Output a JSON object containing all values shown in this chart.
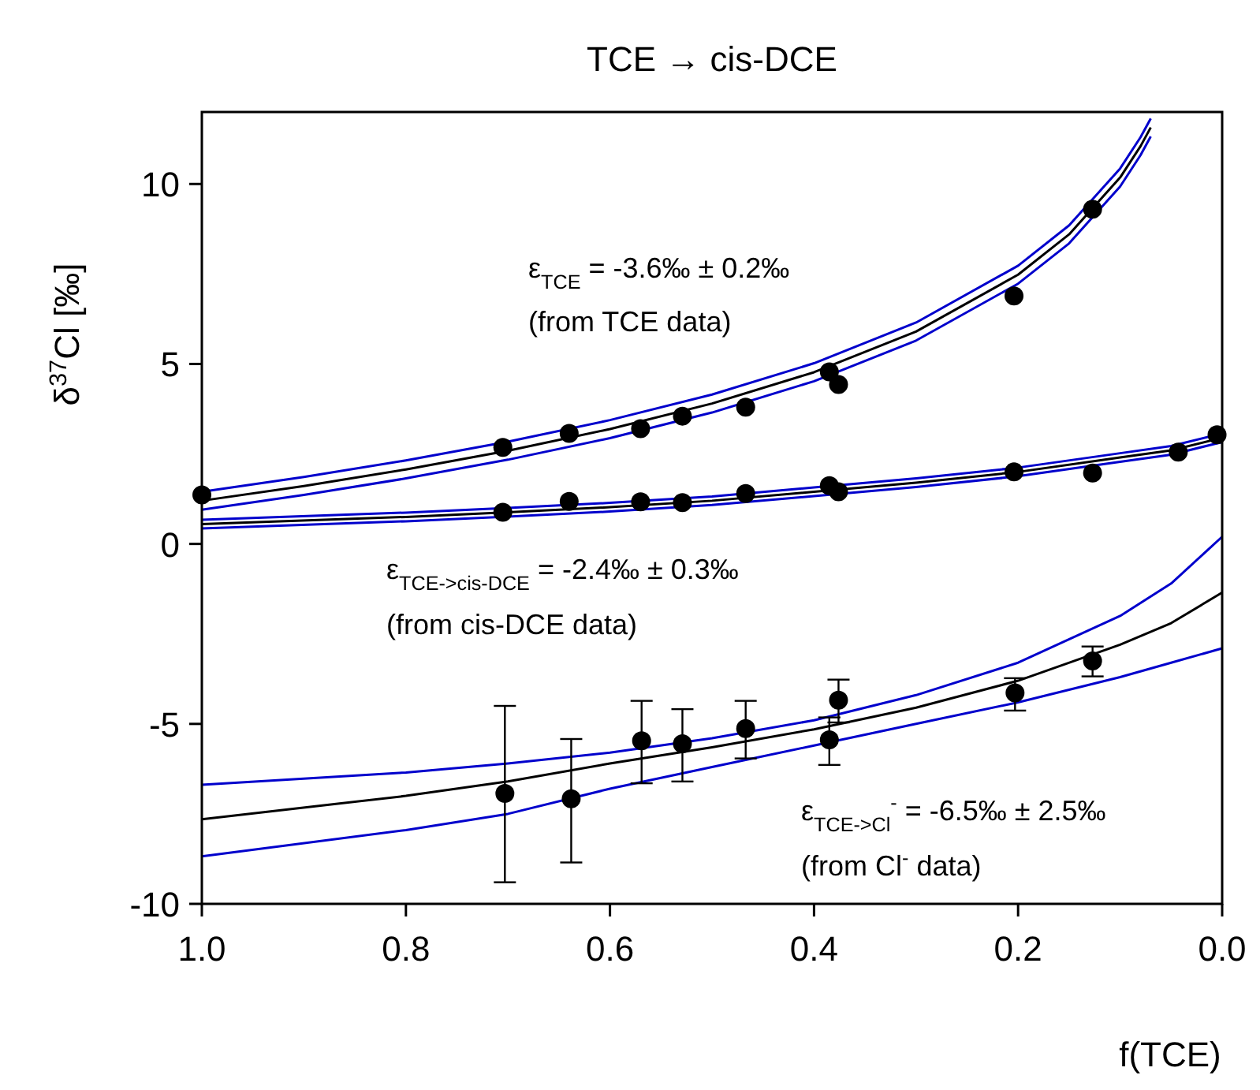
{
  "chart_data": {
    "type": "scatter",
    "title": "TCE → cis-DCE",
    "xlabel": "f(TCE)",
    "ylabel": "δ$^{37}$Cl [‰]",
    "xlim": [
      1,
      0
    ],
    "xticks": [
      {
        "value": 1,
        "label": "1.0"
      },
      {
        "value": 0.8,
        "label": "0.8"
      },
      {
        "value": 0.6,
        "label": "0.6"
      },
      {
        "value": 0.4,
        "label": "0.4"
      },
      {
        "value": 0.2,
        "label": "0.2"
      },
      {
        "value": 0,
        "label": "0.0"
      }
    ],
    "ylim": [
      -10,
      12
    ],
    "yticks": [
      -10,
      -5,
      0,
      5,
      10
    ],
    "grid": false,
    "line_style": "solid",
    "series": [
      {
        "type": "line",
        "color": "#0000cc",
        "x": [
          1,
          0.9,
          0.8,
          0.7,
          0.6,
          0.5,
          0.4,
          0.3,
          0.2,
          0.15,
          0.1,
          0.08,
          0.07
        ],
        "values": [
          1.45,
          1.86,
          2.32,
          2.84,
          3.44,
          4.15,
          5.02,
          6.15,
          7.73,
          8.85,
          10.43,
          11.3,
          11.82
        ]
      },
      {
        "type": "line",
        "color": "#0000cc",
        "x": [
          1,
          0.9,
          0.8,
          0.7,
          0.6,
          0.5,
          0.4,
          0.3,
          0.2,
          0.15,
          0.1,
          0.08,
          0.07
        ],
        "values": [
          0.95,
          1.36,
          1.82,
          2.34,
          2.94,
          3.65,
          4.52,
          5.65,
          7.23,
          8.35,
          9.93,
          10.8,
          11.32
        ]
      },
      {
        "type": "line",
        "color": "#000000",
        "x": [
          1,
          0.9,
          0.8,
          0.7,
          0.6,
          0.5,
          0.4,
          0.3,
          0.2,
          0.15,
          0.1,
          0.08,
          0.07
        ],
        "values": [
          1.2,
          1.61,
          2.07,
          2.59,
          3.19,
          3.9,
          4.77,
          5.9,
          7.48,
          8.6,
          10.18,
          11.05,
          11.57
        ]
      },
      {
        "type": "line",
        "color": "#0000cc",
        "x": [
          1,
          0.8,
          0.7,
          0.6,
          0.5,
          0.4,
          0.3,
          0.2,
          0.1,
          0.05,
          0
        ],
        "values": [
          0.67,
          0.87,
          1.0,
          1.14,
          1.32,
          1.57,
          1.82,
          2.12,
          2.52,
          2.72,
          3.07
        ]
      },
      {
        "type": "line",
        "color": "#0000cc",
        "x": [
          1,
          0.8,
          0.7,
          0.6,
          0.5,
          0.4,
          0.3,
          0.2,
          0.1,
          0.05,
          0
        ],
        "values": [
          0.43,
          0.63,
          0.76,
          0.9,
          1.08,
          1.33,
          1.58,
          1.88,
          2.28,
          2.48,
          2.83
        ]
      },
      {
        "type": "line",
        "color": "#000000",
        "x": [
          1,
          0.8,
          0.7,
          0.6,
          0.5,
          0.4,
          0.3,
          0.2,
          0.1,
          0.05,
          0
        ],
        "values": [
          0.55,
          0.75,
          0.88,
          1.02,
          1.2,
          1.45,
          1.7,
          2.0,
          2.4,
          2.6,
          2.95
        ]
      },
      {
        "type": "line",
        "color": "#0000cc",
        "x": [
          1,
          0.8,
          0.7,
          0.6,
          0.5,
          0.4,
          0.3,
          0.2,
          0.1,
          0.05,
          0
        ],
        "values": [
          -6.69,
          -6.35,
          -6.1,
          -5.8,
          -5.4,
          -4.9,
          -4.2,
          -3.3,
          -2.0,
          -1.1,
          0.2
        ]
      },
      {
        "type": "line",
        "color": "#0000cc",
        "x": [
          1,
          0.8,
          0.7,
          0.6,
          0.5,
          0.4,
          0.3,
          0.2,
          0.1,
          0.05,
          0
        ],
        "values": [
          -8.68,
          -7.95,
          -7.5,
          -6.8,
          -6.2,
          -5.6,
          -5.0,
          -4.4,
          -3.7,
          -3.3,
          -2.9
        ]
      },
      {
        "type": "line",
        "color": "#000000",
        "x": [
          1,
          0.8,
          0.7,
          0.6,
          0.5,
          0.4,
          0.3,
          0.2,
          0.1,
          0.05,
          0
        ],
        "values": [
          -7.65,
          -7.0,
          -6.6,
          -6.1,
          -5.65,
          -5.15,
          -4.55,
          -3.8,
          -2.8,
          -2.2,
          -1.35
        ]
      },
      {
        "color": "#000000",
        "marker": "circle",
        "x": [
          1,
          0.705,
          0.64,
          0.57,
          0.529,
          0.467,
          0.385,
          0.376,
          0.204,
          0.127
        ],
        "values": [
          1.36,
          2.68,
          3.07,
          3.2,
          3.55,
          3.8,
          4.78,
          4.43,
          6.89,
          9.3
        ]
      },
      {
        "color": "#000000",
        "marker": "circle",
        "x": [
          0.705,
          0.64,
          0.57,
          0.529,
          0.467,
          0.385,
          0.376,
          0.204,
          0.127,
          0.043,
          0.005
        ],
        "values": [
          0.88,
          1.18,
          1.17,
          1.15,
          1.4,
          1.62,
          1.45,
          2.0,
          1.97,
          2.55,
          3.03
        ]
      },
      {
        "color": "#000000",
        "marker": "circle",
        "x": [
          0.703,
          0.638,
          0.569,
          0.529,
          0.467,
          0.385,
          0.376,
          0.203,
          0.127
        ],
        "values": [
          -6.93,
          -7.08,
          -5.47,
          -5.55,
          -5.13,
          -5.44,
          -4.34,
          -4.14,
          -3.25
        ],
        "errors": [
          [
            -9.4,
            -4.5
          ],
          [
            -8.85,
            -5.42
          ],
          [
            -6.65,
            -4.36
          ],
          [
            -6.6,
            -4.59
          ],
          [
            -5.96,
            -4.36
          ],
          [
            -6.14,
            -4.82
          ],
          [
            -4.96,
            -3.77
          ],
          [
            -4.63,
            -3.73
          ],
          [
            -3.68,
            -2.85
          ]
        ]
      }
    ],
    "annotations": [
      "ε$_{TCE}$ = -3.6‰ ± 0.2‰",
      "(from TCE data)",
      "ε$_{TCE->cis-DCE}$ = -2.4‰ ± 0.3‰",
      "(from cis-DCE data)",
      "ε$_{TCE->Cl}$$^{-}$ = -6.5‰ ± 2.5‰",
      "(from Cl$^{-}$ data)"
    ]
  }
}
